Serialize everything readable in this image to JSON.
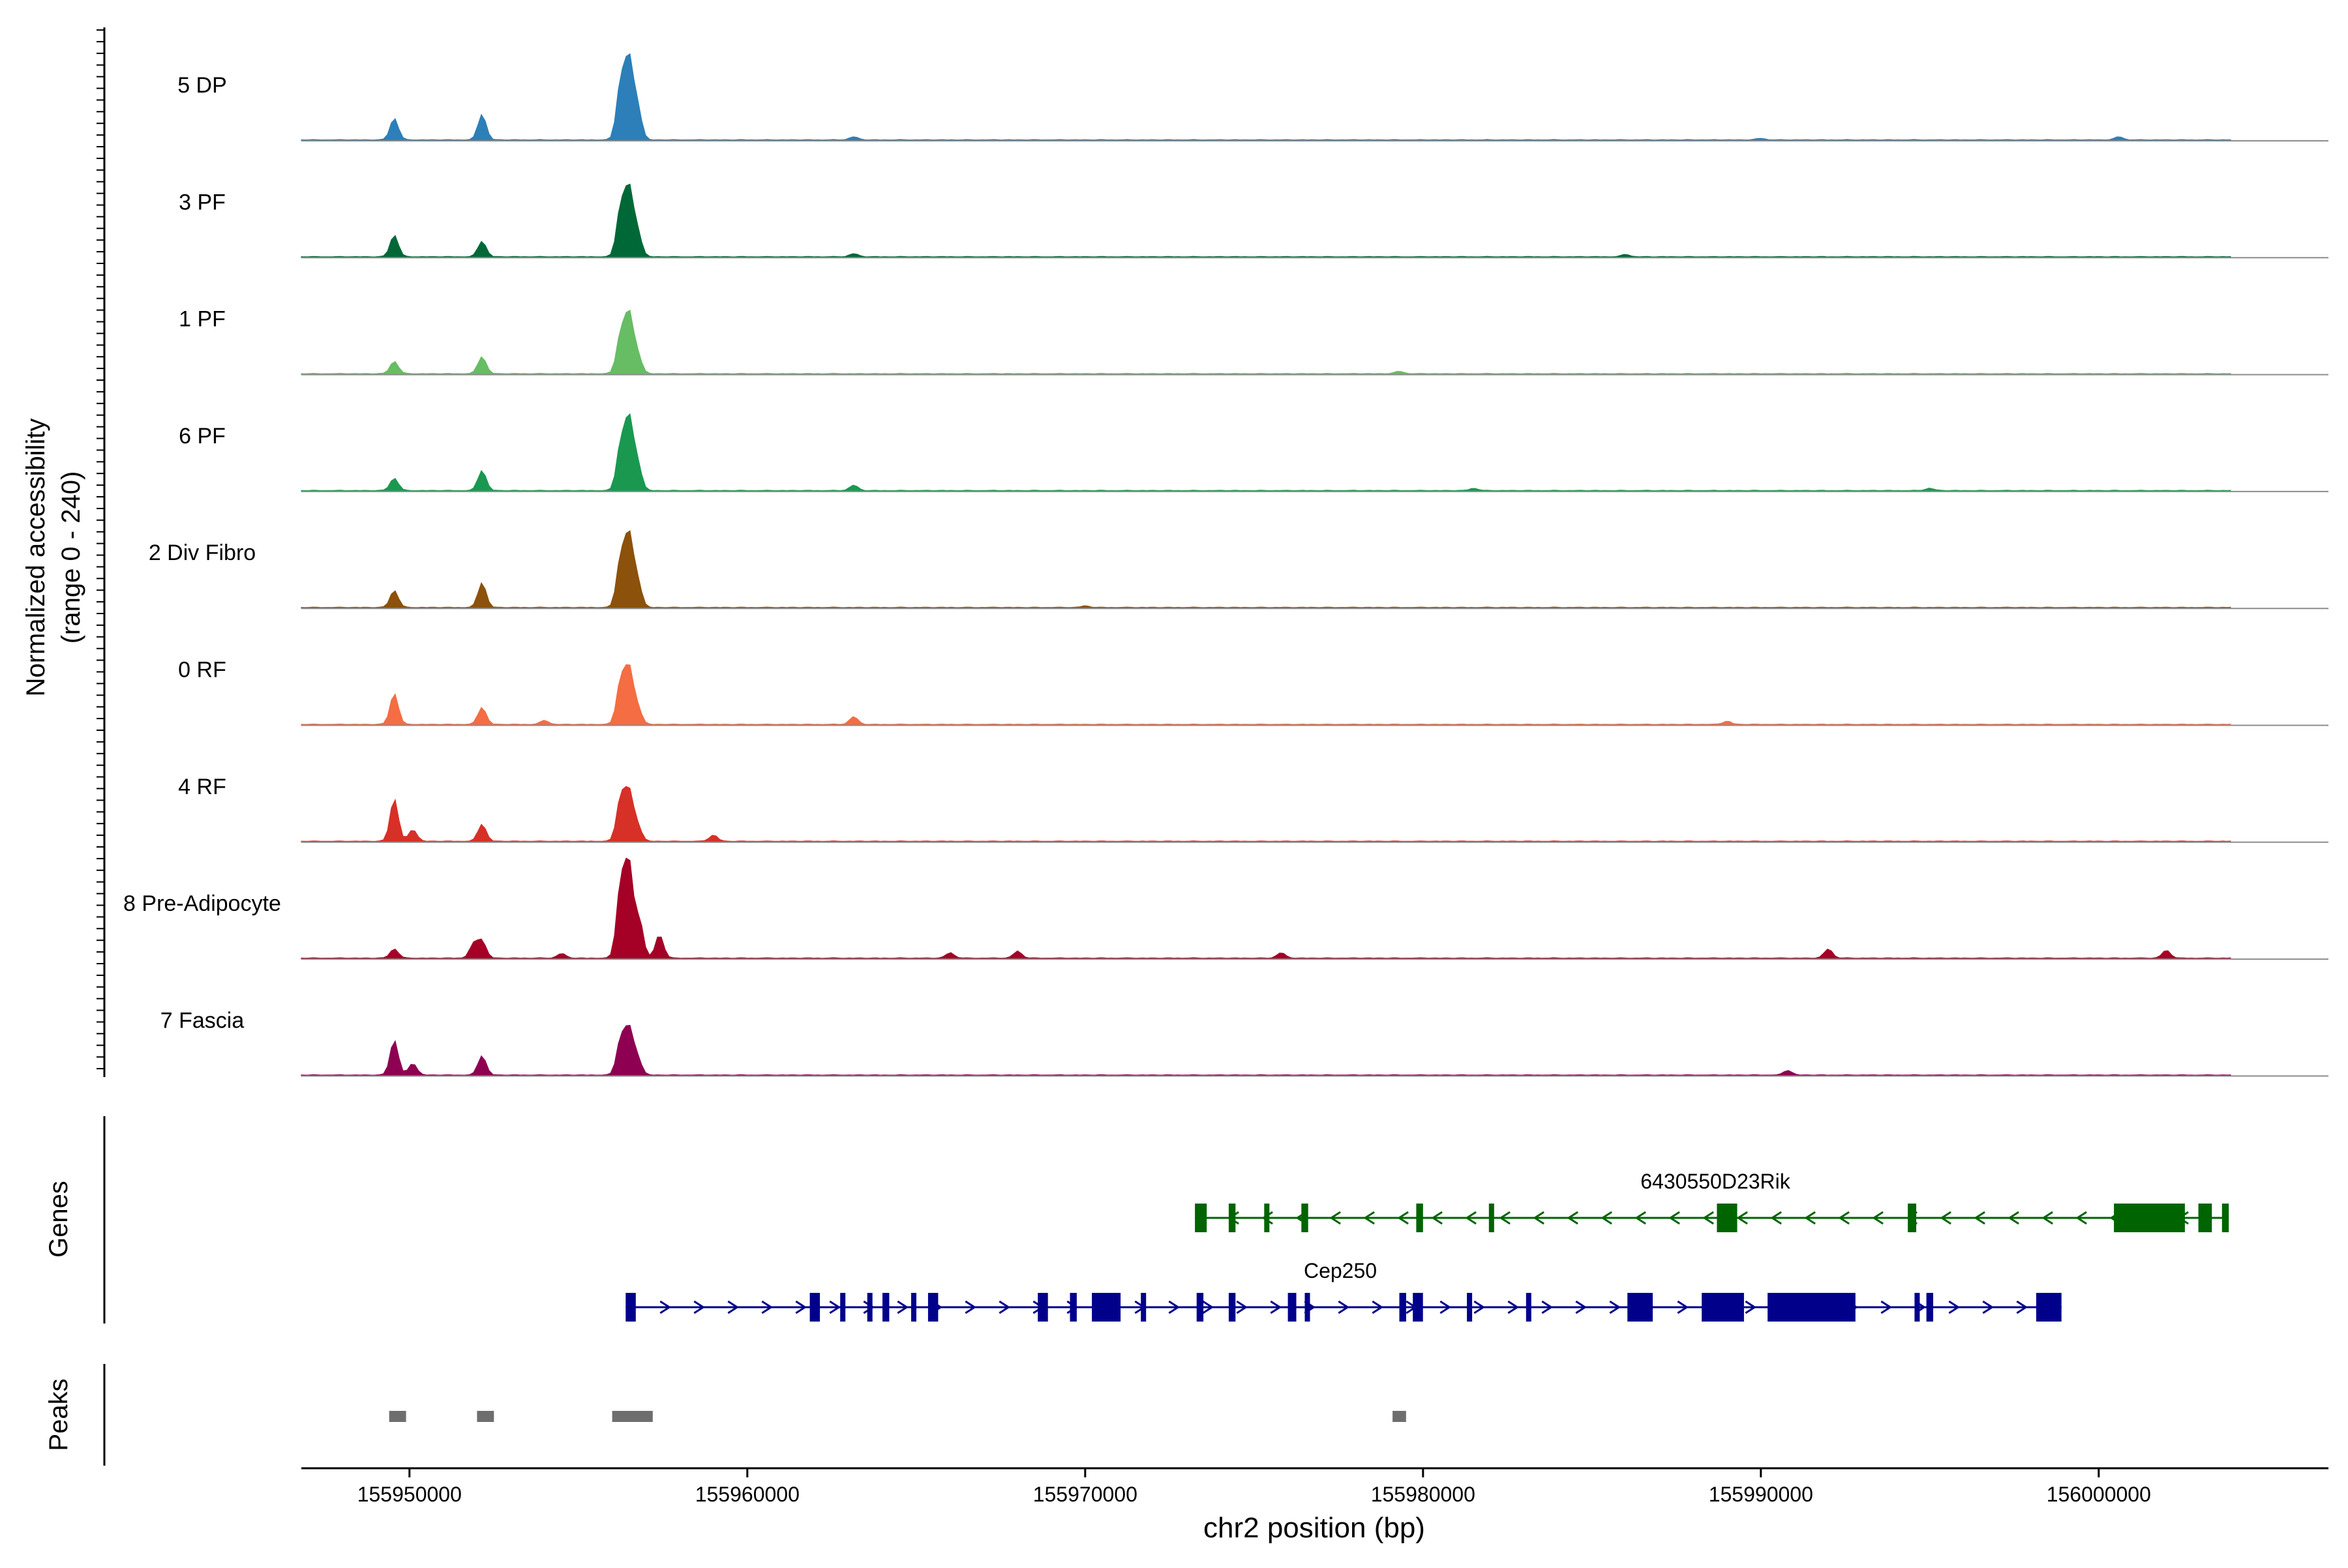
{
  "chart_data": {
    "type": "area",
    "ylabel_line1": "Normalized accessibility",
    "ylabel_line2": "(range 0 - 240)",
    "xlabel": "chr2 position (bp)",
    "xlim": [
      155946800,
      156006800
    ],
    "x_ticks": [
      155950000,
      155960000,
      155970000,
      155980000,
      155990000,
      156000000
    ],
    "x_tick_labels": [
      "155950000",
      "155960000",
      "155970000",
      "155980000",
      "155990000",
      "156000000"
    ],
    "series": [
      {
        "name": "5 DP",
        "color": "#2c7fb8",
        "peaks": [
          {
            "x": 155949550,
            "v": 0.28
          },
          {
            "x": 155952150,
            "v": 0.33
          },
          {
            "x": 155956250,
            "v": 0.72
          },
          {
            "x": 155956500,
            "v": 1.0
          },
          {
            "x": 155956750,
            "v": 0.42
          },
          {
            "x": 155963150,
            "v": 0.04
          },
          {
            "x": 155990000,
            "v": 0.02
          },
          {
            "x": 156000600,
            "v": 0.04
          }
        ]
      },
      {
        "name": "3 PF",
        "color": "#006837",
        "peaks": [
          {
            "x": 155949550,
            "v": 0.28
          },
          {
            "x": 155952150,
            "v": 0.2
          },
          {
            "x": 155956250,
            "v": 0.62
          },
          {
            "x": 155956500,
            "v": 0.85
          },
          {
            "x": 155956750,
            "v": 0.32
          },
          {
            "x": 155963150,
            "v": 0.04
          },
          {
            "x": 155986000,
            "v": 0.03
          }
        ]
      },
      {
        "name": "1 PF",
        "color": "#66bd63",
        "peaks": [
          {
            "x": 155949550,
            "v": 0.16
          },
          {
            "x": 155952150,
            "v": 0.22
          },
          {
            "x": 155956250,
            "v": 0.5
          },
          {
            "x": 155956500,
            "v": 0.75
          },
          {
            "x": 155956750,
            "v": 0.25
          },
          {
            "x": 155979300,
            "v": 0.03
          }
        ]
      },
      {
        "name": "6 PF",
        "color": "#1a9850",
        "peaks": [
          {
            "x": 155949550,
            "v": 0.16
          },
          {
            "x": 155952150,
            "v": 0.26
          },
          {
            "x": 155956250,
            "v": 0.58
          },
          {
            "x": 155956500,
            "v": 0.9
          },
          {
            "x": 155956750,
            "v": 0.35
          },
          {
            "x": 155963150,
            "v": 0.07
          },
          {
            "x": 155981500,
            "v": 0.03
          },
          {
            "x": 155995000,
            "v": 0.03
          }
        ]
      },
      {
        "name": "2 Div Fibro",
        "color": "#8c510a",
        "peaks": [
          {
            "x": 155949550,
            "v": 0.22
          },
          {
            "x": 155952150,
            "v": 0.32
          },
          {
            "x": 155956250,
            "v": 0.62
          },
          {
            "x": 155956500,
            "v": 0.9
          },
          {
            "x": 155956750,
            "v": 0.34
          },
          {
            "x": 155970000,
            "v": 0.02
          }
        ]
      },
      {
        "name": "0 RF",
        "color": "#f46d43",
        "peaks": [
          {
            "x": 155949550,
            "v": 0.4
          },
          {
            "x": 155952150,
            "v": 0.22
          },
          {
            "x": 155954000,
            "v": 0.05
          },
          {
            "x": 155956250,
            "v": 0.55
          },
          {
            "x": 155956500,
            "v": 0.7
          },
          {
            "x": 155956750,
            "v": 0.22
          },
          {
            "x": 155963150,
            "v": 0.1
          },
          {
            "x": 155989000,
            "v": 0.04
          }
        ]
      },
      {
        "name": "4 RF",
        "color": "#d73027",
        "peaks": [
          {
            "x": 155949550,
            "v": 0.55
          },
          {
            "x": 155950100,
            "v": 0.15
          },
          {
            "x": 155952150,
            "v": 0.22
          },
          {
            "x": 155956250,
            "v": 0.55
          },
          {
            "x": 155956500,
            "v": 0.62
          },
          {
            "x": 155956750,
            "v": 0.2
          },
          {
            "x": 155959000,
            "v": 0.08
          }
        ]
      },
      {
        "name": "8 Pre-Adipocyte",
        "color": "#a50026",
        "peaks": [
          {
            "x": 155949550,
            "v": 0.12
          },
          {
            "x": 155951900,
            "v": 0.18
          },
          {
            "x": 155952150,
            "v": 0.22
          },
          {
            "x": 155954500,
            "v": 0.06
          },
          {
            "x": 155956250,
            "v": 0.92
          },
          {
            "x": 155956500,
            "v": 1.18
          },
          {
            "x": 155956800,
            "v": 0.5
          },
          {
            "x": 155957400,
            "v": 0.3
          },
          {
            "x": 155966000,
            "v": 0.07
          },
          {
            "x": 155968000,
            "v": 0.09
          },
          {
            "x": 155975800,
            "v": 0.07
          },
          {
            "x": 155992000,
            "v": 0.12
          },
          {
            "x": 156002000,
            "v": 0.1
          }
        ]
      },
      {
        "name": "7 Fascia",
        "color": "#8e0152",
        "peaks": [
          {
            "x": 155949550,
            "v": 0.45
          },
          {
            "x": 155950100,
            "v": 0.15
          },
          {
            "x": 155952150,
            "v": 0.25
          },
          {
            "x": 155956250,
            "v": 0.45
          },
          {
            "x": 155956500,
            "v": 0.58
          },
          {
            "x": 155956750,
            "v": 0.22
          },
          {
            "x": 155990800,
            "v": 0.06
          }
        ]
      }
    ],
    "genes_label": "Genes",
    "genes": [
      {
        "name": "6430550D23Rik",
        "color": "#006400",
        "strand": "-",
        "start": 155973250,
        "end": 156003850,
        "exons": [
          [
            155973250,
            155973600
          ],
          [
            155974250,
            155974450
          ],
          [
            155975300,
            155975400
          ],
          [
            155976400,
            155976600
          ],
          [
            155979800,
            155980000
          ],
          [
            155981950,
            155982100
          ],
          [
            155988700,
            155989300
          ],
          [
            155994350,
            155994600
          ],
          [
            156000450,
            156002550
          ],
          [
            156002950,
            156003350
          ],
          [
            156003650,
            156003850
          ]
        ]
      },
      {
        "name": "Cep250",
        "color": "#00008b",
        "strand": "+",
        "start": 155956400,
        "end": 155998900,
        "exons": [
          [
            155956400,
            155956700
          ],
          [
            155961850,
            155962150
          ],
          [
            155962750,
            155962850
          ],
          [
            155963550,
            155963650
          ],
          [
            155964000,
            155964200
          ],
          [
            155964850,
            155965000
          ],
          [
            155965350,
            155965650
          ],
          [
            155968600,
            155968900
          ],
          [
            155969550,
            155969750
          ],
          [
            155970200,
            155971050
          ],
          [
            155971650,
            155971800
          ],
          [
            155973300,
            155973500
          ],
          [
            155974250,
            155974450
          ],
          [
            155976000,
            155976250
          ],
          [
            155976500,
            155976650
          ],
          [
            155979300,
            155979500
          ],
          [
            155979700,
            155980000
          ],
          [
            155981300,
            155981450
          ],
          [
            155983050,
            155983200
          ],
          [
            155986050,
            155986800
          ],
          [
            155988250,
            155989500
          ],
          [
            155990200,
            155992800
          ],
          [
            155994550,
            155994700
          ],
          [
            155994900,
            155995100
          ],
          [
            155998150,
            155998900
          ]
        ]
      }
    ],
    "peaks_label": "Peaks",
    "peak_regions": [
      [
        155949400,
        155949900
      ],
      [
        155952000,
        155952500
      ],
      [
        155956000,
        155957200
      ],
      [
        155979100,
        155979500
      ]
    ]
  }
}
